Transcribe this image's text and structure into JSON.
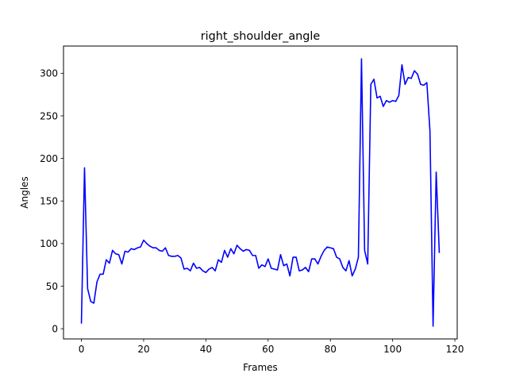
{
  "chart_data": {
    "type": "line",
    "title": "right_shoulder_angle",
    "xlabel": "Frames",
    "ylabel": "Angles",
    "xlim": [
      -5.75,
      120.75
    ],
    "ylim": [
      -12,
      332
    ],
    "xticks": [
      0,
      20,
      40,
      60,
      80,
      100,
      120
    ],
    "yticks": [
      0,
      50,
      100,
      150,
      200,
      250,
      300
    ],
    "grid": false,
    "series": [
      {
        "color": "#0000ff",
        "x": [
          0,
          1,
          2,
          3,
          4,
          5,
          6,
          7,
          8,
          9,
          10,
          11,
          12,
          13,
          14,
          15,
          16,
          17,
          18,
          19,
          20,
          21,
          22,
          23,
          24,
          25,
          26,
          27,
          28,
          29,
          30,
          31,
          32,
          33,
          34,
          35,
          36,
          37,
          38,
          39,
          40,
          41,
          42,
          43,
          44,
          45,
          46,
          47,
          48,
          49,
          50,
          51,
          52,
          53,
          54,
          55,
          56,
          57,
          58,
          59,
          60,
          61,
          62,
          63,
          64,
          65,
          66,
          67,
          68,
          69,
          70,
          71,
          72,
          73,
          74,
          75,
          76,
          77,
          78,
          79,
          80,
          81,
          82,
          83,
          84,
          85,
          86,
          87,
          88,
          89,
          90,
          91,
          92,
          93,
          94,
          95,
          96,
          97,
          98,
          99,
          100,
          101,
          102,
          103,
          104,
          105,
          106,
          107,
          108,
          109,
          110,
          111,
          112,
          113,
          114,
          115
        ],
        "values": [
          6,
          189,
          47,
          32,
          30,
          55,
          64,
          64,
          81,
          77,
          92,
          88,
          87,
          76,
          91,
          90,
          94,
          93,
          95,
          96,
          104,
          100,
          97,
          95,
          95,
          92,
          91,
          95,
          86,
          85,
          85,
          86,
          83,
          70,
          71,
          68,
          77,
          71,
          72,
          68,
          66,
          70,
          72,
          68,
          81,
          78,
          92,
          84,
          94,
          88,
          98,
          94,
          91,
          93,
          92,
          86,
          86,
          71,
          75,
          73,
          82,
          71,
          70,
          69,
          87,
          74,
          76,
          62,
          84,
          84,
          68,
          69,
          72,
          67,
          82,
          82,
          76,
          85,
          92,
          96,
          95,
          94,
          84,
          82,
          72,
          68,
          80,
          62,
          70,
          84,
          317,
          92,
          76,
          287,
          293,
          271,
          273,
          261,
          268,
          266,
          268,
          267,
          274,
          310,
          287,
          295,
          294,
          303,
          299,
          287,
          286,
          289,
          232,
          3,
          184,
          89
        ]
      }
    ]
  }
}
